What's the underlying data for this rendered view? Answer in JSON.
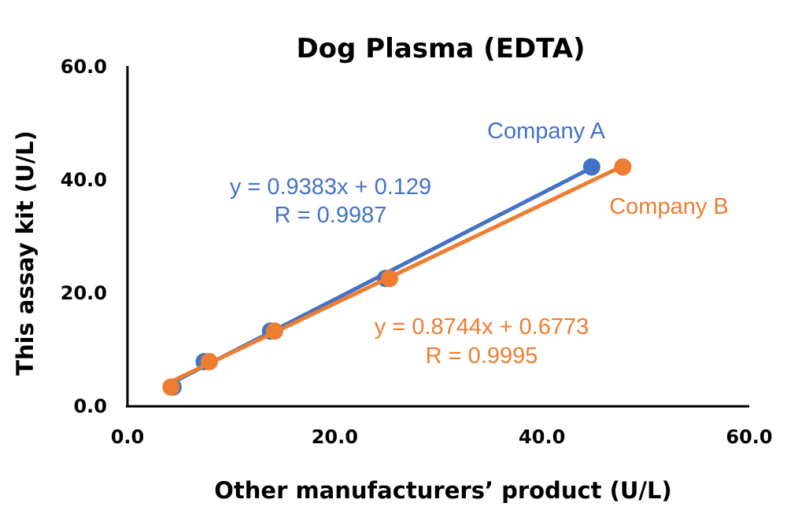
{
  "chart_data": {
    "type": "scatter",
    "title": "Dog Plasma (EDTA)",
    "xlabel": "Other manufacturers’ product (U/L)",
    "ylabel": "This assay kit (U/L)",
    "xlim": [
      0,
      60
    ],
    "ylim": [
      0,
      60
    ],
    "x_ticks": [
      "0.0",
      "20.0",
      "40.0",
      "60.0"
    ],
    "y_ticks": [
      "0.0",
      "20.0",
      "40.0",
      "60.0"
    ],
    "grid": false,
    "series": [
      {
        "name": "Company A",
        "color": "#4472C4",
        "points": [
          {
            "x": 4.4,
            "y": 3.4
          },
          {
            "x": 7.4,
            "y": 7.9
          },
          {
            "x": 13.8,
            "y": 13.3
          },
          {
            "x": 24.9,
            "y": 22.6
          },
          {
            "x": 44.8,
            "y": 42.3
          }
        ],
        "trendline": {
          "slope": 0.9383,
          "intercept": 0.129
        },
        "equation": "y = 0.9383x + 0.129",
        "r_label": "R = 0.9987"
      },
      {
        "name": "Company B",
        "color": "#ED7D31",
        "points": [
          {
            "x": 4.2,
            "y": 3.4
          },
          {
            "x": 7.9,
            "y": 7.9
          },
          {
            "x": 14.2,
            "y": 13.3
          },
          {
            "x": 25.3,
            "y": 22.6
          },
          {
            "x": 47.8,
            "y": 42.3
          }
        ],
        "trendline": {
          "slope": 0.8744,
          "intercept": 0.6773
        },
        "equation": "y = 0.8744x + 0.6773",
        "r_label": "R = 0.9995"
      }
    ]
  }
}
